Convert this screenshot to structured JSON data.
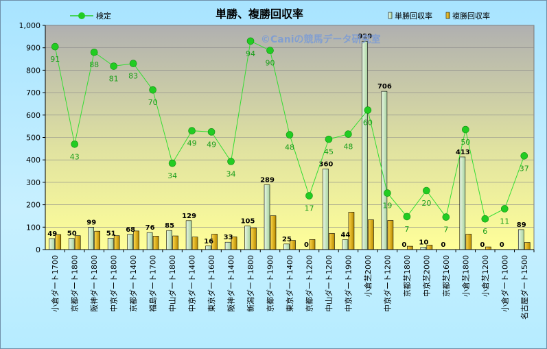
{
  "chart_data": {
    "type": "bar",
    "title": "単勝、複勝回収率",
    "watermark": "©Caniの競馬データ研究室",
    "ylim": [
      0,
      1000
    ],
    "yticks": [
      "0",
      "100",
      "200",
      "300",
      "400",
      "500",
      "600",
      "700",
      "800",
      "900",
      "1,000"
    ],
    "categories": [
      "小倉ダート1700",
      "京都ダート1800",
      "阪神ダート1800",
      "中京ダート1800",
      "京都ダート1400",
      "福島ダート1700",
      "中山ダート1800",
      "中京ダート1400",
      "東京ダート1600",
      "阪神ダート1400",
      "新潟ダート1800",
      "京都ダート1900",
      "東京ダート1400",
      "京都ダート1200",
      "中山ダート1200",
      "中京ダート1900",
      "小倉芝2000",
      "中京ダート1200",
      "京都芝1800",
      "中京芝2000",
      "京都芝1600",
      "小倉芝1800",
      "小倉芝1200",
      "小倉ダート1000",
      "名古屋ダート1500"
    ],
    "series": [
      {
        "name": "単勝回収率",
        "color": "#c6e6c0",
        "values": [
          49,
          50,
          99,
          51,
          68,
          76,
          85,
          129,
          16,
          33,
          105,
          289,
          25,
          0,
          360,
          44,
          929,
          706,
          0,
          10,
          0,
          413,
          0,
          0,
          89
        ]
      },
      {
        "name": "複勝回収率",
        "color": "#e8b400",
        "values": [
          67,
          62,
          82,
          62,
          83,
          60,
          61,
          56,
          69,
          57,
          97,
          151,
          41,
          45,
          72,
          167,
          133,
          130,
          15,
          20,
          0,
          69,
          12,
          0,
          32
        ]
      },
      {
        "name": "検定",
        "type": "line",
        "color": "#22cc22",
        "values": [
          91,
          43,
          88,
          81,
          83,
          70,
          34,
          49,
          49,
          34,
          94,
          90,
          48,
          17,
          45,
          48,
          60,
          19,
          7,
          20,
          7,
          50,
          6,
          11,
          37
        ]
      }
    ],
    "line_y": [
      905,
      470,
      880,
      818,
      830,
      712,
      385,
      530,
      525,
      393,
      930,
      888,
      512,
      240,
      492,
      515,
      622,
      252,
      147,
      263,
      145,
      535,
      137,
      182,
      418
    ],
    "legend": "top"
  }
}
